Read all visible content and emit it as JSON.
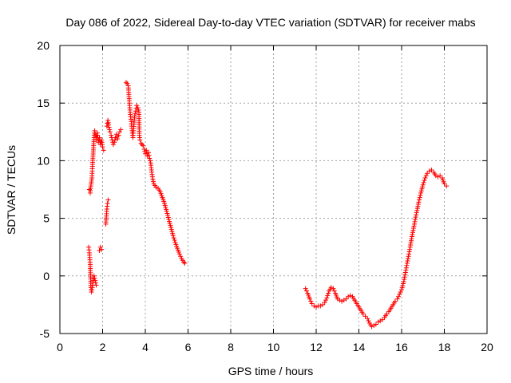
{
  "chart_data": {
    "type": "scatter",
    "title": "Day 086 of 2022, Sidereal Day-to-day VTEC variation (SDTVAR) for receiver mabs",
    "xlabel": "GPS time / hours",
    "ylabel": "SDTVAR / TECUs",
    "xlim": [
      0,
      20
    ],
    "ylim": [
      -5,
      20
    ],
    "xticks": [
      0,
      2,
      4,
      6,
      8,
      10,
      12,
      14,
      16,
      18,
      20
    ],
    "yticks": [
      -5,
      0,
      5,
      10,
      15,
      20
    ],
    "grid": true,
    "marker": "+",
    "color": "#ff0000",
    "series": [
      {
        "name": "SDTVAR",
        "segments": [
          [
            [
              1.35,
              2.5
            ],
            [
              1.38,
              2.0
            ],
            [
              1.4,
              1.6
            ],
            [
              1.42,
              1.0
            ],
            [
              1.45,
              -1.0
            ],
            [
              1.48,
              -1.4
            ],
            [
              1.5,
              -1.2
            ],
            [
              1.55,
              -0.6
            ],
            [
              1.6,
              0.0
            ],
            [
              1.65,
              -0.4
            ],
            [
              1.7,
              -0.8
            ]
          ],
          [
            [
              1.38,
              7.5
            ],
            [
              1.42,
              7.2
            ],
            [
              1.45,
              7.8
            ],
            [
              1.5,
              8.5
            ],
            [
              1.52,
              9.5
            ],
            [
              1.55,
              10.4
            ],
            [
              1.58,
              11.3
            ],
            [
              1.6,
              12.0
            ],
            [
              1.63,
              12.6
            ],
            [
              1.67,
              12.3
            ],
            [
              1.7,
              11.8
            ],
            [
              1.75,
              12.4
            ],
            [
              1.8,
              11.6
            ],
            [
              1.85,
              12.0
            ],
            [
              1.9,
              11.4
            ],
            [
              1.95,
              11.8
            ],
            [
              2.0,
              11.2
            ],
            [
              2.05,
              10.9
            ]
          ],
          [
            [
              1.85,
              2.2
            ],
            [
              1.9,
              2.5
            ],
            [
              1.95,
              2.3
            ]
          ],
          [
            [
              2.15,
              4.5
            ],
            [
              2.18,
              5.2
            ],
            [
              2.2,
              5.8
            ],
            [
              2.23,
              6.3
            ],
            [
              2.26,
              6.6
            ]
          ],
          [
            [
              2.2,
              13.0
            ],
            [
              2.25,
              13.5
            ],
            [
              2.3,
              12.9
            ],
            [
              2.35,
              12.5
            ],
            [
              2.4,
              12.2
            ],
            [
              2.45,
              11.8
            ],
            [
              2.5,
              11.4
            ],
            [
              2.55,
              11.6
            ],
            [
              2.6,
              12.0
            ],
            [
              2.65,
              12.3
            ],
            [
              2.7,
              11.9
            ],
            [
              2.75,
              12.2
            ],
            [
              2.8,
              12.5
            ],
            [
              2.85,
              12.7
            ]
          ],
          [
            [
              3.1,
              16.8
            ],
            [
              3.15,
              16.7
            ],
            [
              3.2,
              16.5
            ],
            [
              3.25,
              15.2
            ],
            [
              3.3,
              14.0
            ],
            [
              3.35,
              13.2
            ],
            [
              3.38,
              12.6
            ],
            [
              3.42,
              12.0
            ],
            [
              3.45,
              12.8
            ],
            [
              3.5,
              13.9
            ],
            [
              3.55,
              14.3
            ],
            [
              3.6,
              14.8
            ],
            [
              3.65,
              14.6
            ],
            [
              3.7,
              14.2
            ],
            [
              3.72,
              12.2
            ],
            [
              3.75,
              11.8
            ],
            [
              3.8,
              11.5
            ],
            [
              3.85,
              11.4
            ],
            [
              3.9,
              11.3
            ]
          ],
          [
            [
              3.95,
              11.0
            ],
            [
              4.0,
              10.6
            ],
            [
              4.05,
              10.9
            ],
            [
              4.1,
              10.4
            ],
            [
              4.15,
              10.7
            ],
            [
              4.2,
              10.2
            ],
            [
              4.25,
              9.8
            ],
            [
              4.3,
              9.0
            ],
            [
              4.35,
              8.4
            ],
            [
              4.4,
              8.0
            ],
            [
              4.5,
              7.7
            ],
            [
              4.6,
              7.6
            ],
            [
              4.7,
              7.3
            ],
            [
              4.8,
              6.8
            ],
            [
              4.9,
              6.3
            ],
            [
              5.0,
              5.6
            ],
            [
              5.1,
              4.9
            ],
            [
              5.2,
              4.2
            ],
            [
              5.3,
              3.5
            ],
            [
              5.4,
              2.9
            ],
            [
              5.5,
              2.4
            ],
            [
              5.6,
              1.9
            ],
            [
              5.7,
              1.5
            ],
            [
              5.8,
              1.2
            ],
            [
              5.85,
              1.1
            ]
          ],
          [
            [
              11.5,
              -1.1
            ],
            [
              11.6,
              -1.5
            ],
            [
              11.7,
              -2.0
            ],
            [
              11.8,
              -2.4
            ],
            [
              11.9,
              -2.6
            ],
            [
              12.0,
              -2.7
            ],
            [
              12.1,
              -2.6
            ],
            [
              12.2,
              -2.6
            ],
            [
              12.3,
              -2.5
            ],
            [
              12.4,
              -2.3
            ],
            [
              12.5,
              -1.9
            ],
            [
              12.6,
              -1.3
            ],
            [
              12.7,
              -1.0
            ],
            [
              12.8,
              -1.1
            ],
            [
              12.9,
              -1.5
            ],
            [
              13.0,
              -2.0
            ],
            [
              13.1,
              -2.1
            ],
            [
              13.2,
              -2.2
            ],
            [
              13.3,
              -2.1
            ],
            [
              13.4,
              -2.0
            ],
            [
              13.5,
              -1.8
            ],
            [
              13.6,
              -1.7
            ],
            [
              13.7,
              -1.8
            ],
            [
              13.8,
              -2.1
            ],
            [
              13.9,
              -2.4
            ],
            [
              14.0,
              -2.7
            ],
            [
              14.1,
              -3.0
            ],
            [
              14.2,
              -3.3
            ],
            [
              14.3,
              -3.5
            ],
            [
              14.4,
              -3.7
            ],
            [
              14.5,
              -4.1
            ],
            [
              14.6,
              -4.4
            ],
            [
              14.7,
              -4.3
            ],
            [
              14.8,
              -4.2
            ],
            [
              14.9,
              -4.0
            ],
            [
              15.0,
              -3.9
            ],
            [
              15.1,
              -3.8
            ],
            [
              15.2,
              -3.6
            ],
            [
              15.3,
              -3.3
            ],
            [
              15.4,
              -3.1
            ],
            [
              15.5,
              -2.8
            ],
            [
              15.6,
              -2.5
            ],
            [
              15.7,
              -2.2
            ],
            [
              15.8,
              -2.0
            ],
            [
              15.9,
              -1.6
            ],
            [
              16.0,
              -1.2
            ],
            [
              16.1,
              -0.5
            ],
            [
              16.2,
              0.5
            ],
            [
              16.3,
              1.5
            ],
            [
              16.4,
              2.5
            ],
            [
              16.5,
              3.6
            ],
            [
              16.6,
              4.5
            ],
            [
              16.7,
              5.5
            ],
            [
              16.8,
              6.4
            ],
            [
              16.9,
              7.2
            ],
            [
              17.0,
              7.9
            ],
            [
              17.1,
              8.5
            ],
            [
              17.2,
              8.9
            ],
            [
              17.3,
              9.1
            ],
            [
              17.4,
              9.2
            ],
            [
              17.5,
              9.0
            ],
            [
              17.6,
              8.7
            ],
            [
              17.7,
              8.6
            ],
            [
              17.8,
              8.7
            ],
            [
              17.9,
              8.5
            ],
            [
              18.0,
              8.0
            ],
            [
              18.1,
              7.8
            ]
          ]
        ]
      }
    ]
  }
}
